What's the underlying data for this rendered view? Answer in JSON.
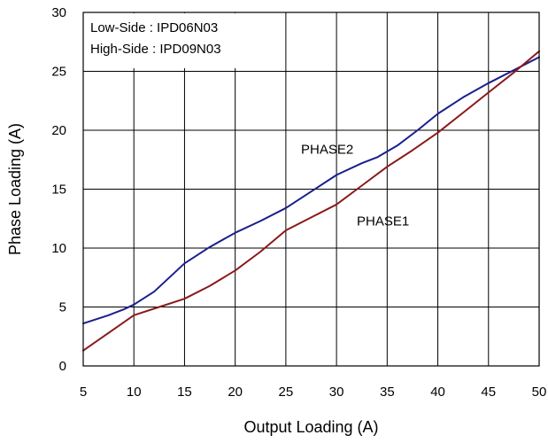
{
  "chart_data": {
    "type": "line",
    "xlabel": "Output Loading (A)",
    "ylabel": "Phase Loading (A)",
    "xlim": [
      5,
      50
    ],
    "ylim": [
      0,
      30
    ],
    "xticks": [
      5,
      10,
      15,
      20,
      25,
      30,
      35,
      40,
      45,
      50
    ],
    "yticks": [
      0,
      5,
      10,
      15,
      20,
      25,
      30
    ],
    "grid": true,
    "legend_box": [
      "Low-Side : IPD06N03",
      "High-Side : IPD09N03"
    ],
    "series": [
      {
        "name": "PHASE2",
        "color": "#1a1f8c",
        "x": [
          5,
          7.5,
          9,
          10,
          12,
          15,
          17.5,
          20,
          22.5,
          25,
          27.5,
          30,
          32.5,
          34,
          36,
          38,
          40,
          42.5,
          45,
          47.5,
          50
        ],
        "y": [
          3.6,
          4.3,
          4.8,
          5.2,
          6.3,
          8.7,
          10.1,
          11.3,
          12.3,
          13.4,
          14.8,
          16.2,
          17.2,
          17.7,
          18.7,
          20.0,
          21.4,
          22.8,
          24.0,
          25.1,
          26.2
        ]
      },
      {
        "name": "PHASE1",
        "color": "#8b1a1a",
        "x": [
          5,
          6.5,
          8,
          10,
          12.5,
          15,
          17.5,
          20,
          22.5,
          25,
          27.5,
          30,
          32.5,
          35,
          37.5,
          40,
          42.5,
          45,
          47.5,
          50
        ],
        "y": [
          1.3,
          2.2,
          3.1,
          4.3,
          5.0,
          5.7,
          6.8,
          8.1,
          9.7,
          11.5,
          12.6,
          13.7,
          15.3,
          16.9,
          18.3,
          19.8,
          21.5,
          23.2,
          24.9,
          26.7
        ]
      }
    ],
    "annotations": [
      {
        "text": "PHASE2",
        "x": 26.5,
        "y": 18.0
      },
      {
        "text": "PHASE1",
        "x": 32.0,
        "y": 11.9
      }
    ]
  }
}
